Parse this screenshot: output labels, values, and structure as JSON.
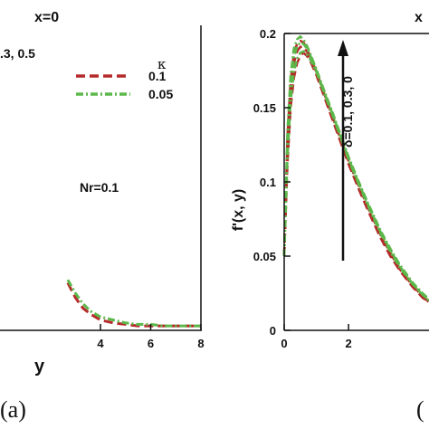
{
  "panel_a": {
    "header": "x=0",
    "param_text": ".3, 0.5",
    "legend_title": "κ",
    "legend_labels": [
      "0.1",
      "0.05"
    ],
    "annotation": "Nr=0.1",
    "xlabel": "y",
    "panel_label": "(a)"
  },
  "panel_b": {
    "header": "x",
    "ylabel": "f'(x, y)",
    "annotation": "δ=0.1, 0.3, 0",
    "panel_label": "("
  },
  "colors": {
    "kappa_0.1": "#b52a2a",
    "kappa_0.05": "#5cb84a",
    "arrow": "#111111"
  },
  "chart_data": [
    {
      "type": "line",
      "panel": "a",
      "xlabel": "y",
      "ylabel": "",
      "xlim": [
        0,
        8
      ],
      "ylim": [
        0,
        0.2
      ],
      "xticks": [
        "4",
        "6",
        "8"
      ],
      "grid": false,
      "legend_title": "κ",
      "legend_position": "top-right",
      "series": [
        {
          "name": "0.1",
          "style": "dashed",
          "color": "#b52a2a",
          "x": [
            2.7,
            3.0,
            3.3,
            3.6,
            4.0,
            4.5,
            5.0,
            5.5,
            6.0,
            6.5,
            7.0,
            7.5,
            8.0
          ],
          "y": [
            0.032,
            0.022,
            0.015,
            0.011,
            0.007,
            0.005,
            0.004,
            0.003,
            0.003,
            0.003,
            0.003,
            0.003,
            0.003
          ]
        },
        {
          "name": "0.05",
          "style": "dash-dot",
          "color": "#5cb84a",
          "x": [
            2.7,
            3.0,
            3.3,
            3.6,
            4.0,
            4.5,
            5.0,
            5.5,
            6.0,
            6.5,
            7.0,
            7.5,
            8.0
          ],
          "y": [
            0.034,
            0.025,
            0.018,
            0.013,
            0.009,
            0.007,
            0.005,
            0.004,
            0.004,
            0.003,
            0.003,
            0.003,
            0.003
          ]
        }
      ]
    },
    {
      "type": "line",
      "panel": "b",
      "xlabel": "",
      "ylabel": "f'(x, y)",
      "xlim": [
        0,
        4.5
      ],
      "ylim": [
        0,
        0.2
      ],
      "xticks": [
        "0",
        "2"
      ],
      "yticks": [
        "0",
        "0.05",
        "0.1",
        "0.15",
        "0.2"
      ],
      "grid": false,
      "series": [
        {
          "name": "0.1",
          "style": "dashed",
          "color": "#b52a2a",
          "groups": [
            {
              "x": [
                0,
                0.1,
                0.2,
                0.3,
                0.4,
                0.5,
                0.6,
                0.7,
                0.8,
                1.0,
                1.2,
                1.5,
                1.8,
                2.0,
                2.3,
                2.6,
                3.0,
                3.3,
                3.6,
                4.0,
                4.3,
                4.5
              ],
              "y": [
                0.05,
                0.112,
                0.15,
                0.17,
                0.18,
                0.185,
                0.187,
                0.185,
                0.182,
                0.172,
                0.16,
                0.142,
                0.124,
                0.112,
                0.096,
                0.081,
                0.062,
                0.05,
                0.04,
                0.029,
                0.022,
                0.019
              ]
            },
            {
              "x": [
                0,
                0.1,
                0.2,
                0.3,
                0.4,
                0.5,
                0.6,
                0.7,
                0.8,
                1.0,
                1.2,
                1.5,
                1.8,
                2.0,
                2.3,
                2.6,
                3.0,
                3.3,
                3.6,
                4.0,
                4.3,
                4.5
              ],
              "y": [
                0.05,
                0.122,
                0.16,
                0.18,
                0.188,
                0.191,
                0.191,
                0.188,
                0.184,
                0.173,
                0.161,
                0.143,
                0.125,
                0.113,
                0.097,
                0.082,
                0.063,
                0.051,
                0.041,
                0.03,
                0.023,
                0.019
              ]
            },
            {
              "x": [
                0,
                0.1,
                0.2,
                0.3,
                0.4,
                0.5,
                0.6,
                0.7,
                0.8,
                1.0,
                1.2,
                1.5,
                1.8,
                2.0,
                2.3,
                2.6,
                3.0,
                3.3,
                3.6,
                4.0,
                4.3,
                4.5
              ],
              "y": [
                0.05,
                0.13,
                0.168,
                0.186,
                0.193,
                0.195,
                0.194,
                0.19,
                0.185,
                0.174,
                0.162,
                0.144,
                0.126,
                0.114,
                0.098,
                0.083,
                0.064,
                0.052,
                0.041,
                0.03,
                0.023,
                0.019
              ]
            }
          ]
        },
        {
          "name": "0.05",
          "style": "dash-dot",
          "color": "#5cb84a",
          "groups": [
            {
              "x": [
                0,
                0.1,
                0.2,
                0.3,
                0.4,
                0.5,
                0.6,
                0.7,
                0.8,
                1.0,
                1.2,
                1.5,
                1.8,
                2.0,
                2.3,
                2.6,
                3.0,
                3.3,
                3.6,
                4.0,
                4.3,
                4.5
              ],
              "y": [
                0.05,
                0.116,
                0.154,
                0.174,
                0.183,
                0.187,
                0.188,
                0.186,
                0.183,
                0.174,
                0.162,
                0.145,
                0.127,
                0.115,
                0.099,
                0.084,
                0.065,
                0.053,
                0.042,
                0.031,
                0.024,
                0.02
              ]
            },
            {
              "x": [
                0,
                0.1,
                0.2,
                0.3,
                0.4,
                0.5,
                0.6,
                0.7,
                0.8,
                1.0,
                1.2,
                1.5,
                1.8,
                2.0,
                2.3,
                2.6,
                3.0,
                3.3,
                3.6,
                4.0,
                4.3,
                4.5
              ],
              "y": [
                0.05,
                0.126,
                0.164,
                0.184,
                0.191,
                0.194,
                0.193,
                0.19,
                0.186,
                0.175,
                0.163,
                0.146,
                0.128,
                0.116,
                0.1,
                0.085,
                0.066,
                0.054,
                0.043,
                0.031,
                0.024,
                0.02
              ]
            },
            {
              "x": [
                0,
                0.1,
                0.2,
                0.3,
                0.4,
                0.5,
                0.6,
                0.7,
                0.8,
                1.0,
                1.2,
                1.5,
                1.8,
                2.0,
                2.3,
                2.6,
                3.0,
                3.3,
                3.6,
                4.0,
                4.3,
                4.5
              ],
              "y": [
                0.05,
                0.134,
                0.172,
                0.19,
                0.196,
                0.198,
                0.196,
                0.192,
                0.187,
                0.176,
                0.164,
                0.147,
                0.129,
                0.117,
                0.101,
                0.086,
                0.067,
                0.055,
                0.044,
                0.032,
                0.025,
                0.021
              ]
            }
          ]
        }
      ]
    }
  ]
}
